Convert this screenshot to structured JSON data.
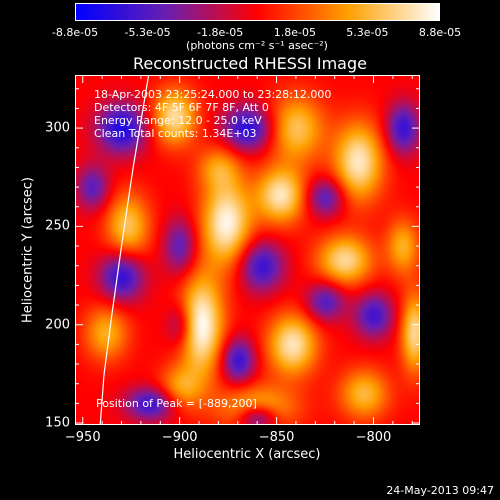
{
  "colorbar": {
    "tick_labels": [
      "-8.8e-05",
      "-5.3e-05",
      "-1.8e-05",
      "1.8e-05",
      "5.3e-05",
      "8.8e-05"
    ],
    "tick_values": [
      -8.8e-05,
      -5.3e-05,
      -1.8e-05,
      1.8e-05,
      5.3e-05,
      8.8e-05
    ],
    "unit_label": "(photons cm⁻² s⁻¹ asec⁻²)",
    "range": [
      -8.8e-05,
      8.8e-05
    ],
    "colors": [
      "#0000ff",
      "#6a1fb0",
      "#ff0000",
      "#ffa000",
      "#ffffff"
    ]
  },
  "chart_data": {
    "type": "heatmap",
    "title": "Reconstructed RHESSI Image",
    "xlabel": "Heliocentric X (arcsec)",
    "ylabel": "Heliocentric Y (arcsec)",
    "xlim": [
      -954,
      -776
    ],
    "ylim": [
      149,
      327
    ],
    "x_ticks": [
      -950,
      -900,
      -850,
      -800
    ],
    "x_tick_labels": [
      "−950",
      "−900",
      "−850",
      "−800"
    ],
    "y_ticks": [
      150,
      200,
      250,
      300
    ],
    "y_tick_labels": [
      "150",
      "200",
      "250",
      "300"
    ],
    "info_lines": [
      "18-Apr-2003 23:25:24.000 to 23:28:12.000",
      "Detectors: 4F 5F 6F 7F 8F, Att 0",
      "Energy Range: 12.0 - 25.0 keV",
      "Clean    Total counts: 1.34E+03"
    ],
    "peak_label": "Position of Peak = [-889,200]",
    "peak": [
      -889,
      200
    ],
    "grid": false,
    "blobs": [
      {
        "x": -889,
        "y": 200,
        "v": 8.8e-05,
        "sx": 8,
        "sy": 18
      },
      {
        "x": -876,
        "y": 252,
        "v": 8.4e-05,
        "sx": 9,
        "sy": 15
      },
      {
        "x": -848,
        "y": 266,
        "v": 7.6e-05,
        "sx": 9,
        "sy": 10
      },
      {
        "x": -808,
        "y": 283,
        "v": 7.8e-05,
        "sx": 9,
        "sy": 14
      },
      {
        "x": -815,
        "y": 233,
        "v": 7e-05,
        "sx": 10,
        "sy": 9
      },
      {
        "x": -842,
        "y": 190,
        "v": 7.6e-05,
        "sx": 9,
        "sy": 11
      },
      {
        "x": -903,
        "y": 306,
        "v": 7.2e-05,
        "sx": 8,
        "sy": 10
      },
      {
        "x": -927,
        "y": 250,
        "v": 6e-05,
        "sx": 8,
        "sy": 12
      },
      {
        "x": -779,
        "y": 196,
        "v": 7e-05,
        "sx": 5,
        "sy": 14
      },
      {
        "x": -938,
        "y": 196,
        "v": 5e-05,
        "sx": 8,
        "sy": 10
      },
      {
        "x": -860,
        "y": 158,
        "v": 5.6e-05,
        "sx": 14,
        "sy": 8
      },
      {
        "x": -840,
        "y": 300,
        "v": 6e-05,
        "sx": 10,
        "sy": 12
      },
      {
        "x": -805,
        "y": 165,
        "v": 5.5e-05,
        "sx": 9,
        "sy": 9
      },
      {
        "x": -900,
        "y": 168,
        "v": 4.5e-05,
        "sx": 8,
        "sy": 8
      },
      {
        "x": -785,
        "y": 240,
        "v": 5e-05,
        "sx": 6,
        "sy": 10
      },
      {
        "x": -880,
        "y": 280,
        "v": 4e-05,
        "sx": 8,
        "sy": 8
      },
      {
        "x": -930,
        "y": 300,
        "v": -7.5e-05,
        "sx": 9,
        "sy": 9
      },
      {
        "x": -930,
        "y": 225,
        "v": -7e-05,
        "sx": 8,
        "sy": 9
      },
      {
        "x": -900,
        "y": 240,
        "v": -5e-05,
        "sx": 6,
        "sy": 10
      },
      {
        "x": -858,
        "y": 230,
        "v": -6.5e-05,
        "sx": 8,
        "sy": 9
      },
      {
        "x": -865,
        "y": 300,
        "v": -7.2e-05,
        "sx": 9,
        "sy": 8
      },
      {
        "x": -870,
        "y": 182,
        "v": -6.5e-05,
        "sx": 6,
        "sy": 8
      },
      {
        "x": -825,
        "y": 212,
        "v": -5.5e-05,
        "sx": 7,
        "sy": 7
      },
      {
        "x": -800,
        "y": 205,
        "v": -6e-05,
        "sx": 7,
        "sy": 8
      },
      {
        "x": -785,
        "y": 300,
        "v": -6.5e-05,
        "sx": 6,
        "sy": 9
      },
      {
        "x": -825,
        "y": 265,
        "v": -5.5e-05,
        "sx": 7,
        "sy": 7
      },
      {
        "x": -900,
        "y": 200,
        "v": -4e-05,
        "sx": 5,
        "sy": 8
      },
      {
        "x": -915,
        "y": 160,
        "v": -6.5e-05,
        "sx": 9,
        "sy": 6
      },
      {
        "x": -860,
        "y": 153,
        "v": -7e-05,
        "sx": 7,
        "sy": 5
      },
      {
        "x": -945,
        "y": 270,
        "v": -5e-05,
        "sx": 6,
        "sy": 8
      }
    ],
    "limb_curve": [
      [
        -941,
        149
      ],
      [
        -939,
        175
      ],
      [
        -935,
        205
      ],
      [
        -930,
        240
      ],
      [
        -924,
        280
      ],
      [
        -916,
        327
      ]
    ]
  },
  "footer": {
    "date": "24-May-2013 09:47"
  }
}
